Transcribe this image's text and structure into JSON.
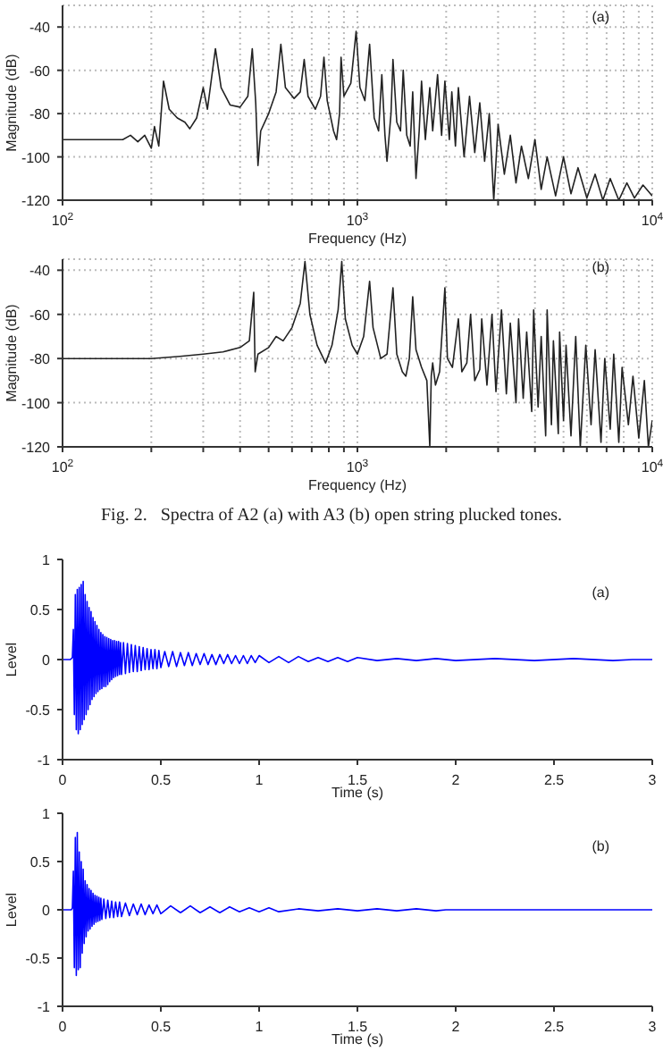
{
  "chart_data": [
    {
      "type": "line",
      "xlabel": "Frequency (Hz)",
      "ylabel": "Magnitude (dB)",
      "annotations": [
        "(a)"
      ],
      "log": "x",
      "grid": true,
      "marker": "none",
      "line_style": "solid",
      "xlim": [
        100,
        10000
      ],
      "ylim": [
        -120,
        -30
      ],
      "yticks": [
        -120,
        -100,
        -80,
        -60,
        -40
      ],
      "xticks": [
        {
          "value": 100,
          "label": "10$^{2}$"
        },
        {
          "value": 200,
          "label": null
        },
        {
          "value": 300,
          "label": null
        },
        {
          "value": 400,
          "label": null
        },
        {
          "value": 500,
          "label": null
        },
        {
          "value": 600,
          "label": null
        },
        {
          "value": 700,
          "label": null
        },
        {
          "value": 800,
          "label": null
        },
        {
          "value": 900,
          "label": null
        },
        {
          "value": 1000,
          "label": "10$^{3}$"
        },
        {
          "value": 2000,
          "label": null
        },
        {
          "value": 3000,
          "label": null
        },
        {
          "value": 4000,
          "label": null
        },
        {
          "value": 5000,
          "label": null
        },
        {
          "value": 6000,
          "label": null
        },
        {
          "value": 7000,
          "label": null
        },
        {
          "value": 8000,
          "label": null
        },
        {
          "value": 9000,
          "label": null
        },
        {
          "value": 10000,
          "label": "10$^{4}$"
        }
      ],
      "series": [
        {
          "color": "#222222",
          "x": [
            100,
            130,
            160,
            170,
            180,
            190,
            200,
            205,
            212,
            220,
            230,
            245,
            260,
            270,
            285,
            300,
            310,
            330,
            345,
            370,
            400,
            425,
            440,
            452,
            460,
            470,
            500,
            530,
            550,
            570,
            610,
            640,
            660,
            680,
            720,
            750,
            770,
            790,
            830,
            850,
            870,
            880,
            900,
            950,
            990,
            1020,
            1060,
            1100,
            1140,
            1180,
            1210,
            1240,
            1260,
            1300,
            1320,
            1360,
            1400,
            1430,
            1470,
            1510,
            1540,
            1580,
            1620,
            1650,
            1700,
            1760,
            1800,
            1870,
            1930,
            1980,
            2050,
            2090,
            2150,
            2200,
            2300,
            2400,
            2500,
            2600,
            2700,
            2800,
            2900,
            3000,
            3150,
            3300,
            3450,
            3600,
            3800,
            4000,
            4200,
            4400,
            4700,
            5000,
            5300,
            5600,
            6000,
            6400,
            6800,
            7200,
            7700,
            8200,
            8700,
            9300,
            10000
          ],
          "values": [
            -92,
            -92,
            -92,
            -90,
            -93,
            -90,
            -96,
            -86,
            -95,
            -65,
            -78,
            -82,
            -84,
            -87,
            -82,
            -68,
            -78,
            -50,
            -68,
            -76,
            -77,
            -72,
            -50,
            -75,
            -104,
            -88,
            -80,
            -70,
            -48,
            -68,
            -73,
            -70,
            -55,
            -72,
            -78,
            -72,
            -54,
            -74,
            -88,
            -92,
            -80,
            -54,
            -72,
            -66,
            -42,
            -68,
            -74,
            -48,
            -82,
            -88,
            -62,
            -90,
            -102,
            -80,
            -55,
            -84,
            -88,
            -60,
            -90,
            -95,
            -70,
            -110,
            -88,
            -65,
            -92,
            -68,
            -88,
            -62,
            -90,
            -65,
            -92,
            -70,
            -95,
            -68,
            -100,
            -72,
            -98,
            -75,
            -102,
            -80,
            -120,
            -85,
            -108,
            -90,
            -112,
            -95,
            -110,
            -92,
            -115,
            -100,
            -118,
            -100,
            -117,
            -105,
            -119,
            -108,
            -120,
            -110,
            -120,
            -112,
            -119,
            -113,
            -118
          ]
        }
      ]
    },
    {
      "type": "line",
      "xlabel": "Frequency (Hz)",
      "ylabel": "Magnitude (dB)",
      "annotations": [
        "(b)",
        "Fig. 2.   Spectra of A2 (a) with A3 (b) open string plucked tones."
      ],
      "log": "x",
      "grid": true,
      "marker": "none",
      "line_style": "solid",
      "xlim": [
        100,
        10000
      ],
      "ylim": [
        -120,
        -35
      ],
      "yticks": [
        -120,
        -100,
        -80,
        -60,
        -40
      ],
      "xticks": [
        {
          "value": 100,
          "label": "10$^{2}$"
        },
        {
          "value": 200,
          "label": null
        },
        {
          "value": 300,
          "label": null
        },
        {
          "value": 400,
          "label": null
        },
        {
          "value": 500,
          "label": null
        },
        {
          "value": 600,
          "label": null
        },
        {
          "value": 700,
          "label": null
        },
        {
          "value": 800,
          "label": null
        },
        {
          "value": 900,
          "label": null
        },
        {
          "value": 1000,
          "label": "10$^{3}$"
        },
        {
          "value": 2000,
          "label": null
        },
        {
          "value": 3000,
          "label": null
        },
        {
          "value": 4000,
          "label": null
        },
        {
          "value": 5000,
          "label": null
        },
        {
          "value": 6000,
          "label": null
        },
        {
          "value": 7000,
          "label": null
        },
        {
          "value": 8000,
          "label": null
        },
        {
          "value": 9000,
          "label": null
        },
        {
          "value": 10000,
          "label": "10$^{4}$"
        }
      ],
      "series": [
        {
          "color": "#222222",
          "x": [
            100,
            150,
            200,
            250,
            300,
            350,
            400,
            430,
            445,
            450,
            460,
            500,
            530,
            560,
            600,
            640,
            664,
            690,
            730,
            780,
            820,
            860,
            885,
            910,
            960,
            1000,
            1050,
            1100,
            1130,
            1200,
            1260,
            1320,
            1360,
            1420,
            1460,
            1500,
            1540,
            1580,
            1650,
            1720,
            1760,
            1780,
            1800,
            1840,
            1900,
            1980,
            2020,
            2100,
            2200,
            2260,
            2350,
            2420,
            2500,
            2600,
            2640,
            2750,
            2860,
            2950,
            3080,
            3200,
            3300,
            3450,
            3520,
            3650,
            3750,
            3900,
            3960,
            4100,
            4200,
            4350,
            4400,
            4550,
            4620,
            4800,
            4850,
            5000,
            5100,
            5300,
            5500,
            5700,
            5950,
            6200,
            6400,
            6700,
            6900,
            7200,
            7400,
            7700,
            7900,
            8300,
            8600,
            9000,
            9400,
            9700,
            10000
          ],
          "values": [
            -80,
            -80,
            -80,
            -79,
            -78,
            -77,
            -75,
            -72,
            -50,
            -86,
            -78,
            -75,
            -70,
            -72,
            -66,
            -55,
            -36,
            -60,
            -74,
            -82,
            -74,
            -58,
            -36,
            -62,
            -74,
            -78,
            -70,
            -45,
            -66,
            -80,
            -78,
            -48,
            -78,
            -86,
            -88,
            -80,
            -52,
            -76,
            -84,
            -90,
            -120,
            -88,
            -82,
            -92,
            -86,
            -48,
            -80,
            -84,
            -62,
            -86,
            -82,
            -60,
            -90,
            -85,
            -62,
            -92,
            -60,
            -95,
            -58,
            -96,
            -64,
            -100,
            -62,
            -98,
            -68,
            -104,
            -58,
            -102,
            -70,
            -115,
            -58,
            -110,
            -72,
            -114,
            -68,
            -108,
            -74,
            -115,
            -70,
            -120,
            -74,
            -110,
            -76,
            -118,
            -80,
            -112,
            -78,
            -118,
            -84,
            -110,
            -88,
            -116,
            -90,
            -120,
            -108
          ]
        }
      ]
    },
    {
      "type": "line",
      "xlabel": "Time (s)",
      "ylabel": "Level",
      "annotations": [
        "(a)"
      ],
      "grid": false,
      "marker": "none",
      "line_style": "solid",
      "xlim": [
        0,
        3
      ],
      "ylim": [
        -1,
        1
      ],
      "xticks": [
        0,
        0.5,
        1,
        1.5,
        2,
        2.5,
        3
      ],
      "yticks": [
        -1,
        -0.5,
        0,
        0.5,
        1
      ],
      "series": [
        {
          "color": "#0000ff",
          "x": [
            0,
            0.04,
            0.05,
            0.055,
            0.06,
            0.065,
            0.07,
            0.075,
            0.08,
            0.085,
            0.09,
            0.095,
            0.1,
            0.105,
            0.11,
            0.115,
            0.12,
            0.125,
            0.13,
            0.135,
            0.14,
            0.145,
            0.15,
            0.155,
            0.16,
            0.165,
            0.17,
            0.175,
            0.18,
            0.185,
            0.19,
            0.195,
            0.2,
            0.205,
            0.21,
            0.215,
            0.22,
            0.225,
            0.23,
            0.235,
            0.24,
            0.245,
            0.25,
            0.255,
            0.26,
            0.265,
            0.27,
            0.275,
            0.28,
            0.285,
            0.29,
            0.295,
            0.3,
            0.31,
            0.32,
            0.33,
            0.34,
            0.35,
            0.36,
            0.37,
            0.38,
            0.39,
            0.4,
            0.41,
            0.42,
            0.43,
            0.44,
            0.45,
            0.46,
            0.47,
            0.48,
            0.49,
            0.5,
            0.52,
            0.54,
            0.56,
            0.58,
            0.6,
            0.62,
            0.64,
            0.66,
            0.68,
            0.7,
            0.72,
            0.74,
            0.76,
            0.78,
            0.8,
            0.82,
            0.84,
            0.86,
            0.88,
            0.9,
            0.92,
            0.94,
            0.96,
            0.98,
            1.0,
            1.05,
            1.1,
            1.15,
            1.2,
            1.25,
            1.3,
            1.35,
            1.4,
            1.45,
            1.5,
            1.6,
            1.7,
            1.8,
            1.9,
            2.0,
            2.2,
            2.4,
            2.6,
            2.8,
            2.9,
            3
          ],
          "values": [
            0,
            0,
            0.02,
            0.3,
            -0.55,
            0.65,
            -0.7,
            0.7,
            -0.74,
            0.72,
            -0.7,
            0.75,
            -0.65,
            0.78,
            -0.6,
            0.65,
            -0.55,
            0.58,
            -0.5,
            0.52,
            -0.45,
            0.48,
            -0.4,
            0.42,
            -0.37,
            0.38,
            -0.34,
            0.34,
            -0.32,
            0.3,
            -0.3,
            0.27,
            -0.29,
            0.25,
            -0.27,
            0.23,
            -0.27,
            0.22,
            -0.25,
            0.21,
            -0.22,
            0.2,
            -0.2,
            0.19,
            -0.18,
            0.19,
            -0.17,
            0.18,
            -0.16,
            0.18,
            -0.15,
            0.17,
            -0.15,
            0.17,
            -0.14,
            0.16,
            -0.13,
            0.15,
            -0.12,
            0.14,
            -0.12,
            0.13,
            -0.11,
            0.12,
            -0.1,
            0.11,
            -0.1,
            0.1,
            -0.09,
            0.1,
            -0.09,
            0.09,
            -0.08,
            0.08,
            -0.07,
            0.08,
            -0.07,
            0.07,
            -0.06,
            0.07,
            -0.06,
            0.06,
            -0.05,
            0.06,
            -0.05,
            0.05,
            -0.05,
            0.05,
            -0.04,
            0.05,
            -0.04,
            0.04,
            -0.04,
            0.04,
            -0.04,
            0.04,
            -0.03,
            0.04,
            -0.03,
            0.03,
            -0.03,
            0.03,
            -0.02,
            0.02,
            -0.02,
            0.02,
            -0.02,
            0.02,
            -0.01,
            0.01,
            -0.01,
            0.01,
            -0.01,
            0.01,
            -0.01,
            0.01,
            -0.01,
            0,
            0
          ]
        }
      ]
    },
    {
      "type": "line",
      "xlabel": "Time (s)",
      "ylabel": "Level",
      "annotations": [
        "(b)"
      ],
      "grid": false,
      "marker": "none",
      "line_style": "solid",
      "xlim": [
        0,
        3
      ],
      "ylim": [
        -1,
        1
      ],
      "xticks": [
        0,
        0.5,
        1,
        1.5,
        2,
        2.5,
        3
      ],
      "yticks": [
        -1,
        -0.5,
        0,
        0.5,
        1
      ],
      "series": [
        {
          "color": "#0000ff",
          "x": [
            0,
            0.045,
            0.05,
            0.055,
            0.06,
            0.065,
            0.07,
            0.075,
            0.08,
            0.085,
            0.09,
            0.095,
            0.1,
            0.105,
            0.11,
            0.115,
            0.12,
            0.125,
            0.13,
            0.135,
            0.14,
            0.145,
            0.15,
            0.155,
            0.16,
            0.165,
            0.17,
            0.175,
            0.18,
            0.185,
            0.19,
            0.195,
            0.2,
            0.21,
            0.22,
            0.23,
            0.24,
            0.25,
            0.26,
            0.27,
            0.28,
            0.29,
            0.3,
            0.32,
            0.34,
            0.36,
            0.38,
            0.4,
            0.42,
            0.44,
            0.46,
            0.48,
            0.5,
            0.55,
            0.6,
            0.65,
            0.7,
            0.75,
            0.8,
            0.85,
            0.9,
            0.95,
            1.0,
            1.05,
            1.1,
            1.2,
            1.3,
            1.4,
            1.5,
            1.6,
            1.7,
            1.8,
            1.9,
            1.95,
            3
          ],
          "values": [
            0,
            0,
            0.02,
            0.4,
            -0.6,
            0.75,
            -0.68,
            0.8,
            -0.62,
            0.6,
            -0.6,
            0.5,
            -0.45,
            0.42,
            -0.35,
            0.3,
            -0.28,
            0.26,
            -0.22,
            0.22,
            -0.2,
            0.2,
            -0.17,
            0.17,
            -0.15,
            0.15,
            -0.13,
            0.14,
            -0.12,
            0.13,
            -0.11,
            0.12,
            -0.1,
            0.11,
            -0.09,
            0.1,
            -0.08,
            0.09,
            -0.08,
            0.08,
            -0.07,
            0.08,
            -0.07,
            0.07,
            -0.06,
            0.06,
            -0.05,
            0.06,
            -0.05,
            0.05,
            -0.04,
            0.05,
            -0.04,
            0.04,
            -0.03,
            0.04,
            -0.03,
            0.03,
            -0.03,
            0.03,
            -0.02,
            0.02,
            -0.02,
            0.02,
            -0.02,
            0.01,
            -0.01,
            0.01,
            -0.01,
            0.01,
            -0.01,
            0.01,
            -0.01,
            0,
            0
          ]
        }
      ]
    }
  ]
}
